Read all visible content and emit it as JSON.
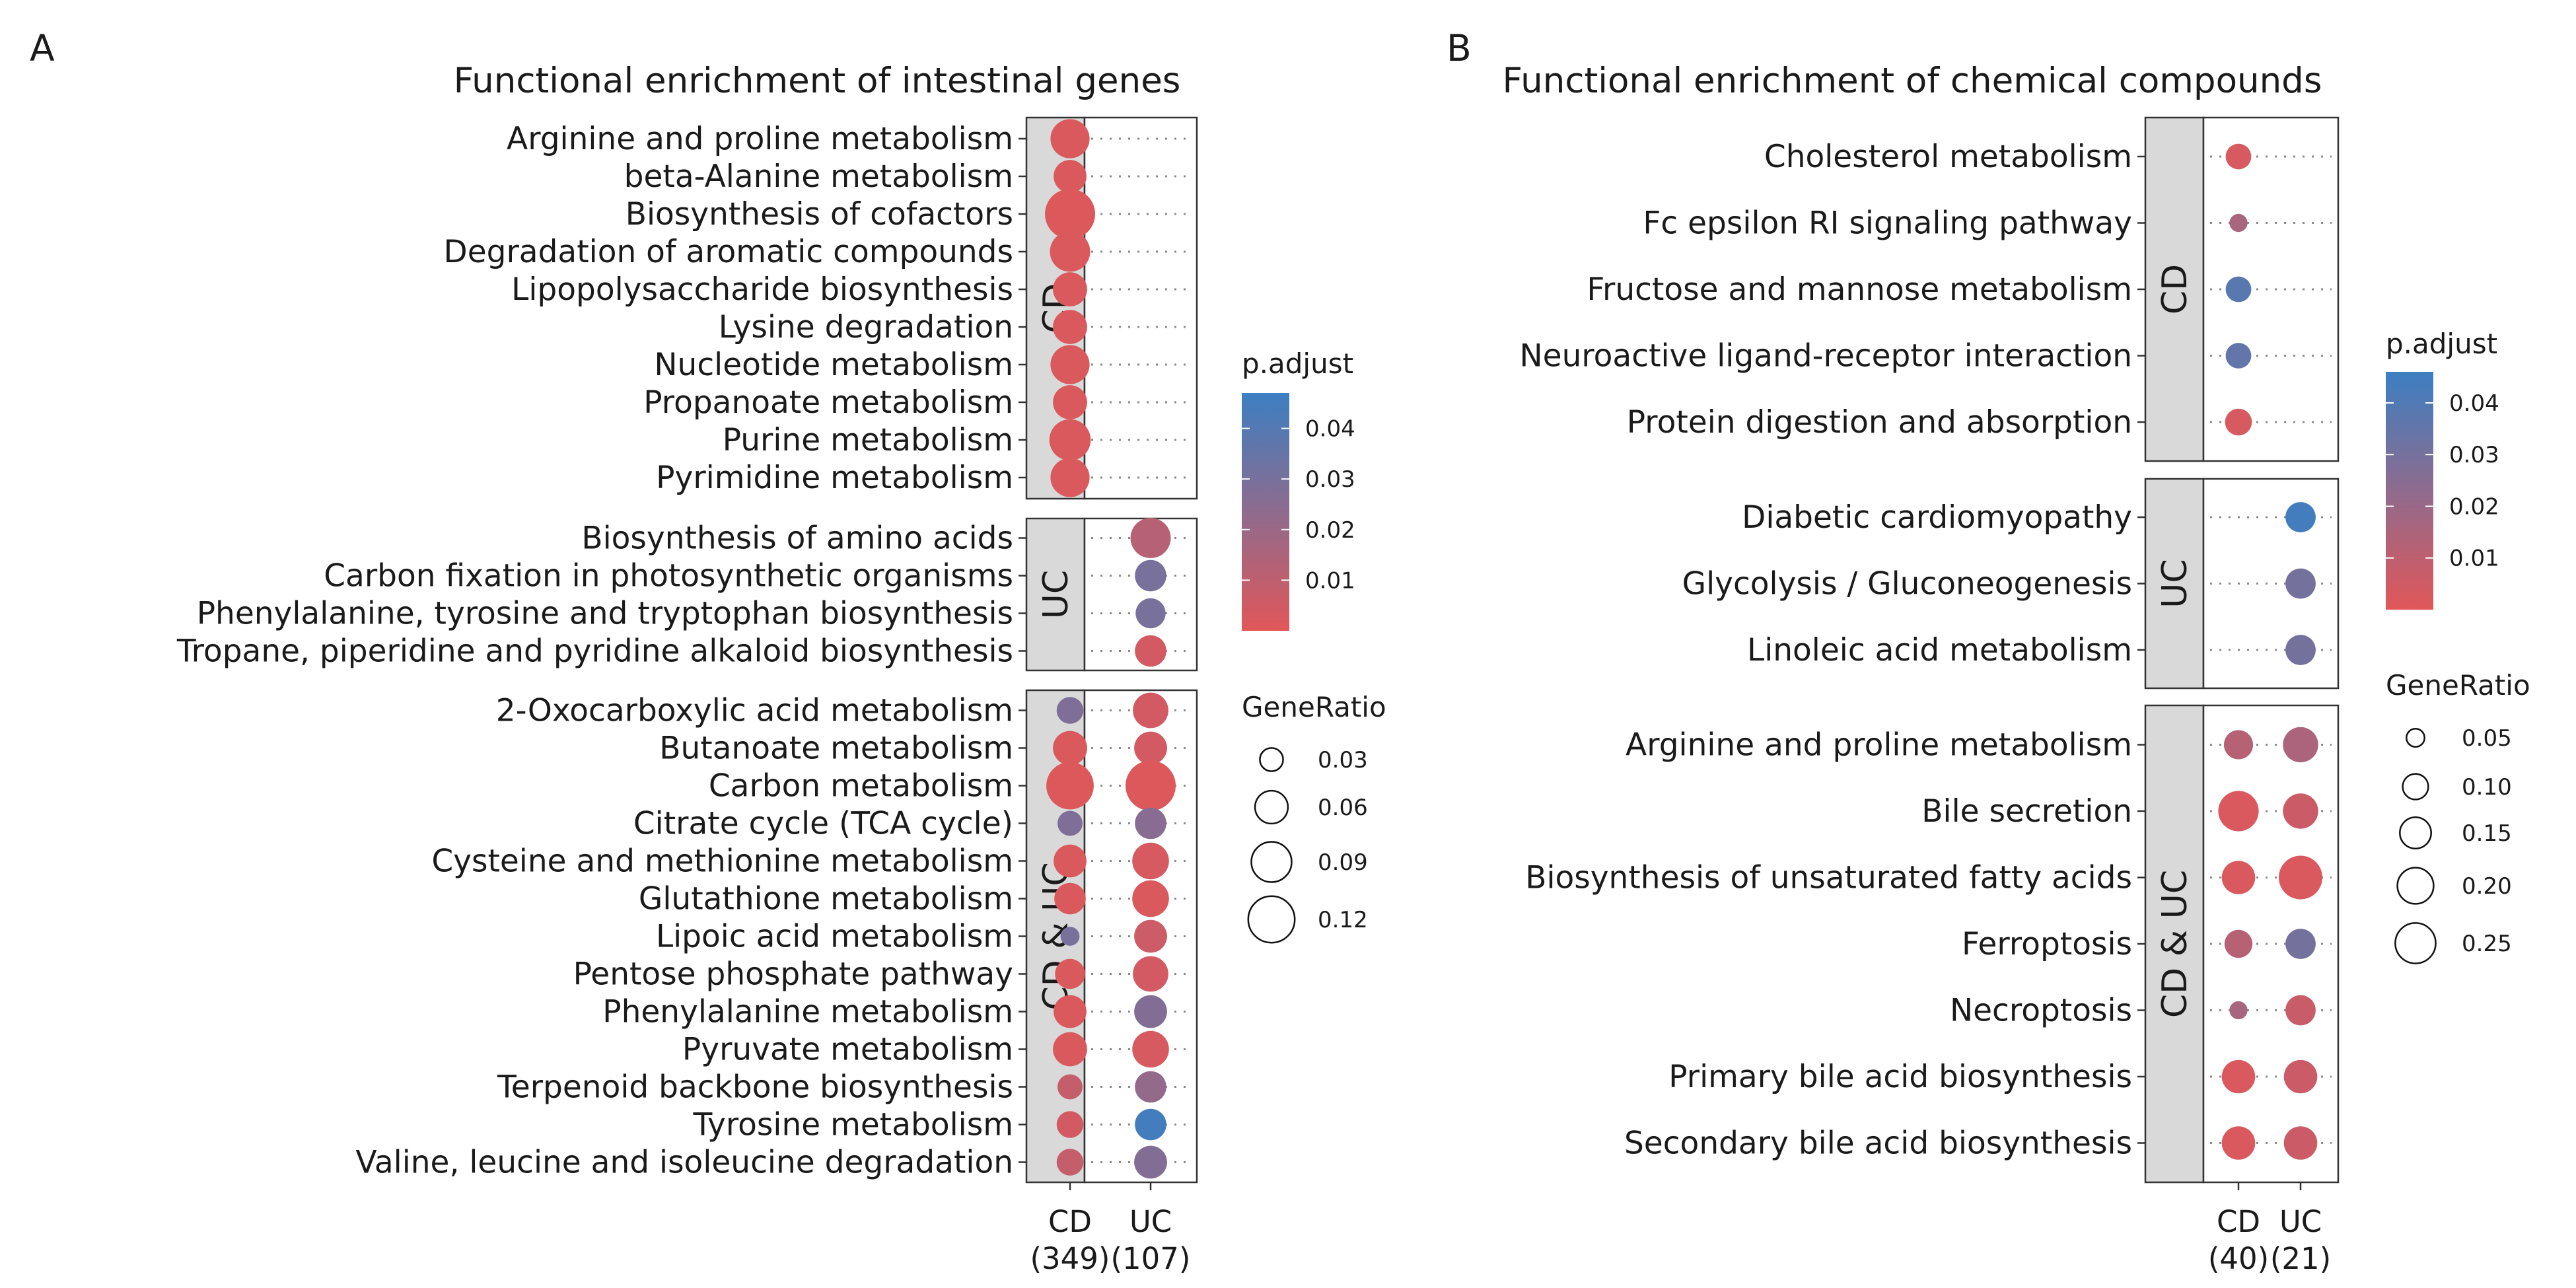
{
  "chart_data": [
    {
      "panel": "A",
      "type": "scatter",
      "title": "Functional enrichment of intestinal genes",
      "x": [
        "CD\n(349)",
        "UC\n(107)"
      ],
      "groups": [
        {
          "name": "CD",
          "terms": [
            "Arginine and proline metabolism",
            "beta-Alanine metabolism",
            "Biosynthesis of cofactors",
            "Degradation of aromatic compounds",
            "Lipopolysaccharide biosynthesis",
            "Lysine degradation",
            "Nucleotide metabolism",
            "Propanoate metabolism",
            "Purine metabolism",
            "Pyrimidine metabolism"
          ],
          "points": [
            {
              "term": "Arginine and proline metabolism",
              "x": "CD",
              "gene_ratio": 0.085,
              "p_adjust": 0.002
            },
            {
              "term": "beta-Alanine metabolism",
              "x": "CD",
              "gene_ratio": 0.06,
              "p_adjust": 0.002
            },
            {
              "term": "Biosynthesis of cofactors",
              "x": "CD",
              "gene_ratio": 0.14,
              "p_adjust": 0.001
            },
            {
              "term": "Degradation of aromatic compounds",
              "x": "CD",
              "gene_ratio": 0.09,
              "p_adjust": 0.002
            },
            {
              "term": "Lipopolysaccharide biosynthesis",
              "x": "CD",
              "gene_ratio": 0.065,
              "p_adjust": 0.002
            },
            {
              "term": "Lysine degradation",
              "x": "CD",
              "gene_ratio": 0.065,
              "p_adjust": 0.002
            },
            {
              "term": "Nucleotide metabolism",
              "x": "CD",
              "gene_ratio": 0.085,
              "p_adjust": 0.002
            },
            {
              "term": "Propanoate metabolism",
              "x": "CD",
              "gene_ratio": 0.065,
              "p_adjust": 0.002
            },
            {
              "term": "Purine metabolism",
              "x": "CD",
              "gene_ratio": 0.095,
              "p_adjust": 0.002
            },
            {
              "term": "Pyrimidine metabolism",
              "x": "CD",
              "gene_ratio": 0.085,
              "p_adjust": 0.002
            }
          ]
        },
        {
          "name": "UC",
          "terms": [
            "Biosynthesis of amino acids",
            "Carbon fixation in photosynthetic organisms",
            "Phenylalanine, tyrosine and tryptophan biosynthesis",
            "Tropane, piperidine and pyridine alkaloid biosynthesis"
          ],
          "points": [
            {
              "term": "Biosynthesis of amino acids",
              "x": "UC",
              "gene_ratio": 0.09,
              "p_adjust": 0.012
            },
            {
              "term": "Carbon fixation in photosynthetic organisms",
              "x": "UC",
              "gene_ratio": 0.055,
              "p_adjust": 0.03
            },
            {
              "term": "Phenylalanine, tyrosine and tryptophan biosynthesis",
              "x": "UC",
              "gene_ratio": 0.05,
              "p_adjust": 0.03
            },
            {
              "term": "Tropane, piperidine and pyridine alkaloid biosynthesis",
              "x": "UC",
              "gene_ratio": 0.055,
              "p_adjust": 0.004
            }
          ]
        },
        {
          "name": "CD & UC",
          "terms": [
            "2-Oxocarboxylic acid metabolism",
            "Butanoate metabolism",
            "Carbon metabolism",
            "Citrate cycle (TCA cycle)",
            "Cysteine and methionine metabolism",
            "Glutathione metabolism",
            "Lipoic acid metabolism",
            "Pentose phosphate pathway",
            "Phenylalanine metabolism",
            "Pyruvate metabolism",
            "Terpenoid backbone biosynthesis",
            "Tyrosine metabolism",
            "Valine, leucine and isoleucine degradation"
          ],
          "points": [
            {
              "term": "2-Oxocarboxylic acid metabolism",
              "x": "CD",
              "gene_ratio": 0.04,
              "p_adjust": 0.028
            },
            {
              "term": "2-Oxocarboxylic acid metabolism",
              "x": "UC",
              "gene_ratio": 0.07,
              "p_adjust": 0.004
            },
            {
              "term": "Butanoate metabolism",
              "x": "CD",
              "gene_ratio": 0.065,
              "p_adjust": 0.002
            },
            {
              "term": "Butanoate metabolism",
              "x": "UC",
              "gene_ratio": 0.06,
              "p_adjust": 0.004
            },
            {
              "term": "Carbon metabolism",
              "x": "CD",
              "gene_ratio": 0.125,
              "p_adjust": 0.001
            },
            {
              "term": "Carbon metabolism",
              "x": "UC",
              "gene_ratio": 0.14,
              "p_adjust": 0.001
            },
            {
              "term": "Citrate cycle (TCA cycle)",
              "x": "CD",
              "gene_ratio": 0.035,
              "p_adjust": 0.028
            },
            {
              "term": "Citrate cycle (TCA cycle)",
              "x": "UC",
              "gene_ratio": 0.055,
              "p_adjust": 0.025
            },
            {
              "term": "Cysteine and methionine metabolism",
              "x": "CD",
              "gene_ratio": 0.06,
              "p_adjust": 0.002
            },
            {
              "term": "Cysteine and methionine metabolism",
              "x": "UC",
              "gene_ratio": 0.075,
              "p_adjust": 0.003
            },
            {
              "term": "Glutathione metabolism",
              "x": "CD",
              "gene_ratio": 0.055,
              "p_adjust": 0.002
            },
            {
              "term": "Glutathione metabolism",
              "x": "UC",
              "gene_ratio": 0.075,
              "p_adjust": 0.002
            },
            {
              "term": "Lipoic acid metabolism",
              "x": "CD",
              "gene_ratio": 0.02,
              "p_adjust": 0.03
            },
            {
              "term": "Lipoic acid metabolism",
              "x": "UC",
              "gene_ratio": 0.06,
              "p_adjust": 0.006
            },
            {
              "term": "Pentose phosphate pathway",
              "x": "CD",
              "gene_ratio": 0.05,
              "p_adjust": 0.002
            },
            {
              "term": "Pentose phosphate pathway",
              "x": "UC",
              "gene_ratio": 0.07,
              "p_adjust": 0.004
            },
            {
              "term": "Phenylalanine metabolism",
              "x": "CD",
              "gene_ratio": 0.06,
              "p_adjust": 0.002
            },
            {
              "term": "Phenylalanine metabolism",
              "x": "UC",
              "gene_ratio": 0.06,
              "p_adjust": 0.027
            },
            {
              "term": "Pyruvate metabolism",
              "x": "CD",
              "gene_ratio": 0.065,
              "p_adjust": 0.002
            },
            {
              "term": "Pyruvate metabolism",
              "x": "UC",
              "gene_ratio": 0.075,
              "p_adjust": 0.003
            },
            {
              "term": "Terpenoid backbone biosynthesis",
              "x": "CD",
              "gene_ratio": 0.035,
              "p_adjust": 0.008
            },
            {
              "term": "Terpenoid backbone biosynthesis",
              "x": "UC",
              "gene_ratio": 0.055,
              "p_adjust": 0.022
            },
            {
              "term": "Tyrosine metabolism",
              "x": "CD",
              "gene_ratio": 0.04,
              "p_adjust": 0.004
            },
            {
              "term": "Tyrosine metabolism",
              "x": "UC",
              "gene_ratio": 0.055,
              "p_adjust": 0.045
            },
            {
              "term": "Valine, leucine and isoleucine degradation",
              "x": "CD",
              "gene_ratio": 0.04,
              "p_adjust": 0.008
            },
            {
              "term": "Valine, leucine and isoleucine degradation",
              "x": "UC",
              "gene_ratio": 0.06,
              "p_adjust": 0.027
            }
          ]
        }
      ],
      "legend": {
        "color_title": "p.adjust",
        "color_range": [
          0.0,
          0.047
        ],
        "color_ticks": [
          0.01,
          0.02,
          0.03,
          0.04
        ],
        "color_tick_labels": [
          "0.01",
          "0.02",
          "0.03",
          "0.04"
        ],
        "size_title": "GeneRatio",
        "size_range": [
          0.015,
          0.145
        ],
        "size_ticks": [
          0.03,
          0.06,
          0.09,
          0.12
        ],
        "size_tick_labels": [
          "0.03",
          "0.06",
          "0.09",
          "0.12"
        ]
      }
    },
    {
      "panel": "B",
      "type": "scatter",
      "title": "Functional enrichment of chemical compounds",
      "x": [
        "CD\n(40)",
        "UC\n(21)"
      ],
      "groups": [
        {
          "name": "CD",
          "terms": [
            "Cholesterol metabolism",
            "Fc epsilon RI signaling pathway",
            "Fructose and mannose metabolism",
            "Neuroactive ligand-receptor interaction",
            "Protein digestion and absorption"
          ],
          "points": [
            {
              "term": "Cholesterol metabolism",
              "x": "CD",
              "gene_ratio": 0.1,
              "p_adjust": 0.003
            },
            {
              "term": "Fc epsilon RI signaling pathway",
              "x": "CD",
              "gene_ratio": 0.05,
              "p_adjust": 0.016
            },
            {
              "term": "Fructose and mannose metabolism",
              "x": "CD",
              "gene_ratio": 0.1,
              "p_adjust": 0.038
            },
            {
              "term": "Neuroactive ligand-receptor interaction",
              "x": "CD",
              "gene_ratio": 0.1,
              "p_adjust": 0.035
            },
            {
              "term": "Protein digestion and absorption",
              "x": "CD",
              "gene_ratio": 0.11,
              "p_adjust": 0.003
            }
          ]
        },
        {
          "name": "UC",
          "terms": [
            "Diabetic cardiomyopathy",
            "Glycolysis / Gluconeogenesis",
            "Linoleic acid metabolism"
          ],
          "points": [
            {
              "term": "Diabetic cardiomyopathy",
              "x": "UC",
              "gene_ratio": 0.14,
              "p_adjust": 0.044
            },
            {
              "term": "Glycolysis / Gluconeogenesis",
              "x": "UC",
              "gene_ratio": 0.14,
              "p_adjust": 0.03
            },
            {
              "term": "Linoleic acid metabolism",
              "x": "UC",
              "gene_ratio": 0.14,
              "p_adjust": 0.03
            }
          ]
        },
        {
          "name": "CD & UC",
          "terms": [
            "Arginine and proline metabolism",
            "Bile secretion",
            "Biosynthesis of unsaturated fatty acids",
            "Ferroptosis",
            "Necroptosis",
            "Primary bile acid biosynthesis",
            "Secondary bile acid biosynthesis"
          ],
          "points": [
            {
              "term": "Arginine and proline metabolism",
              "x": "CD",
              "gene_ratio": 0.13,
              "p_adjust": 0.012
            },
            {
              "term": "Arginine and proline metabolism",
              "x": "UC",
              "gene_ratio": 0.19,
              "p_adjust": 0.015
            },
            {
              "term": "Bile secretion",
              "x": "CD",
              "gene_ratio": 0.25,
              "p_adjust": 0.002
            },
            {
              "term": "Bile secretion",
              "x": "UC",
              "gene_ratio": 0.19,
              "p_adjust": 0.006
            },
            {
              "term": "Biosynthesis of unsaturated fatty acids",
              "x": "CD",
              "gene_ratio": 0.17,
              "p_adjust": 0.002
            },
            {
              "term": "Biosynthesis of unsaturated fatty acids",
              "x": "UC",
              "gene_ratio": 0.29,
              "p_adjust": 0.002
            },
            {
              "term": "Ferroptosis",
              "x": "CD",
              "gene_ratio": 0.12,
              "p_adjust": 0.012
            },
            {
              "term": "Ferroptosis",
              "x": "UC",
              "gene_ratio": 0.14,
              "p_adjust": 0.03
            },
            {
              "term": "Necroptosis",
              "x": "CD",
              "gene_ratio": 0.05,
              "p_adjust": 0.016
            },
            {
              "term": "Necroptosis",
              "x": "UC",
              "gene_ratio": 0.14,
              "p_adjust": 0.007
            },
            {
              "term": "Primary bile acid biosynthesis",
              "x": "CD",
              "gene_ratio": 0.17,
              "p_adjust": 0.002
            },
            {
              "term": "Primary bile acid biosynthesis",
              "x": "UC",
              "gene_ratio": 0.17,
              "p_adjust": 0.006
            },
            {
              "term": "Secondary bile acid biosynthesis",
              "x": "CD",
              "gene_ratio": 0.17,
              "p_adjust": 0.002
            },
            {
              "term": "Secondary bile acid biosynthesis",
              "x": "UC",
              "gene_ratio": 0.17,
              "p_adjust": 0.006
            }
          ]
        }
      ],
      "legend": {
        "color_title": "p.adjust",
        "color_range": [
          0.0,
          0.046
        ],
        "color_ticks": [
          0.01,
          0.02,
          0.03,
          0.04
        ],
        "color_tick_labels": [
          "0.01",
          "0.02",
          "0.03",
          "0.04"
        ],
        "size_title": "GeneRatio",
        "size_range": [
          0.03,
          0.3
        ],
        "size_ticks": [
          0.05,
          0.1,
          0.15,
          0.2,
          0.25
        ],
        "size_tick_labels": [
          "0.05",
          "0.10",
          "0.15",
          "0.20",
          "0.25"
        ]
      }
    }
  ],
  "colors": {
    "low_p": "#E15759",
    "high_p": "#3C7FC2",
    "strip_fill": "#D9D9D9",
    "dots_line": "#8A8A8A"
  }
}
